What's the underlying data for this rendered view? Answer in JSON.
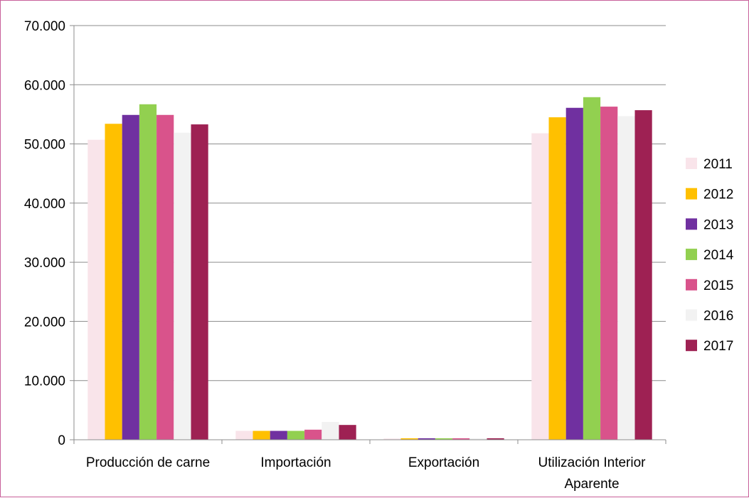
{
  "chart_data": {
    "type": "bar",
    "title": "",
    "xlabel": "",
    "ylabel": "",
    "categories": [
      "Producción de carne",
      "Importación",
      "Exportación",
      "Utilización Interior\nAparente"
    ],
    "ylim": [
      0,
      70000
    ],
    "yticks": [
      0,
      10000,
      20000,
      30000,
      40000,
      50000,
      60000,
      70000
    ],
    "ytick_labels": [
      "0",
      "10.000",
      "20.000",
      "30.000",
      "40.000",
      "50.000",
      "60.000",
      "70.000"
    ],
    "grid": true,
    "legend_position": "right",
    "series": [
      {
        "name": "2011",
        "color": "#f9e4ea",
        "values": [
          50700,
          1500,
          200,
          51800
        ]
      },
      {
        "name": "2012",
        "color": "#ffc000",
        "values": [
          53400,
          1500,
          250,
          54500
        ]
      },
      {
        "name": "2013",
        "color": "#7030a0",
        "values": [
          54900,
          1500,
          250,
          56100
        ]
      },
      {
        "name": "2014",
        "color": "#92d050",
        "values": [
          56700,
          1500,
          250,
          57900
        ]
      },
      {
        "name": "2015",
        "color": "#d9538b",
        "values": [
          54900,
          1700,
          250,
          56300
        ]
      },
      {
        "name": "2016",
        "color": "#f2f2f2",
        "values": [
          51900,
          3000,
          250,
          54700
        ]
      },
      {
        "name": "2017",
        "color": "#9e2153",
        "values": [
          53300,
          2500,
          250,
          55700
        ]
      }
    ]
  }
}
